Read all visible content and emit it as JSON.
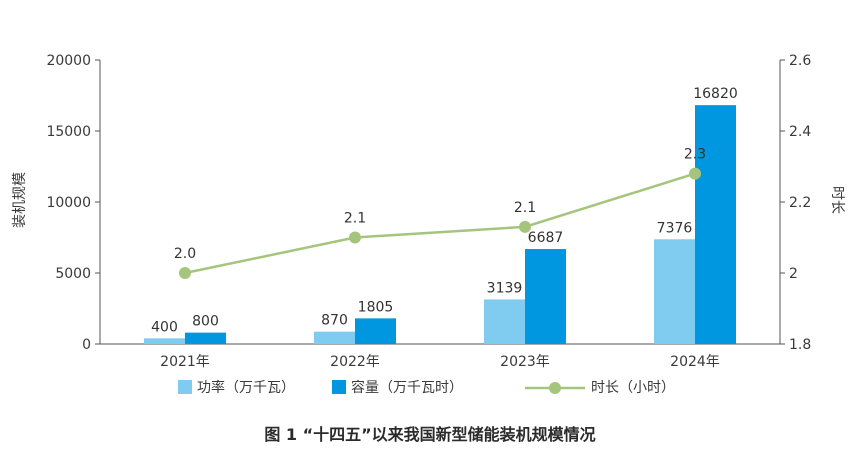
{
  "chart_data": {
    "type": "bar",
    "categories": [
      "2021年",
      "2022年",
      "2023年",
      "2024年"
    ],
    "series": [
      {
        "name": "功率（万千瓦）",
        "type": "bar",
        "axis": "left",
        "color": "#7fccf0",
        "values": [
          400,
          870,
          3139,
          7376
        ],
        "labels": [
          "400",
          "870",
          "3139",
          "7376"
        ]
      },
      {
        "name": "容量（万千瓦时）",
        "type": "bar",
        "axis": "left",
        "color": "#0096e0",
        "values": [
          800,
          1805,
          6687,
          16820
        ],
        "labels": [
          "800",
          "1805",
          "6687",
          "16820"
        ]
      },
      {
        "name": "时长（小时）",
        "type": "line",
        "axis": "right",
        "color": "#a6c57c",
        "values": [
          2.0,
          2.1,
          2.13,
          2.28
        ],
        "labels": [
          "2.0",
          "2.1",
          "2.1",
          "2.3"
        ]
      }
    ],
    "ylabel": "装机规模",
    "y2label": "时长",
    "ylim": [
      0,
      20000
    ],
    "y2lim": [
      1.8,
      2.6
    ],
    "yticks": [
      "0",
      "5000",
      "10000",
      "15000",
      "20000"
    ],
    "y2ticks": [
      "1.8",
      "2",
      "2.2",
      "2.4",
      "2.6"
    ],
    "grid": false,
    "legend_position": "bottom",
    "legend": [
      "功率（万千瓦）",
      "容量（万千瓦时）",
      "时长（小时）"
    ]
  },
  "caption": "图 1 “十四五”以来我国新型储能装机规模情况"
}
